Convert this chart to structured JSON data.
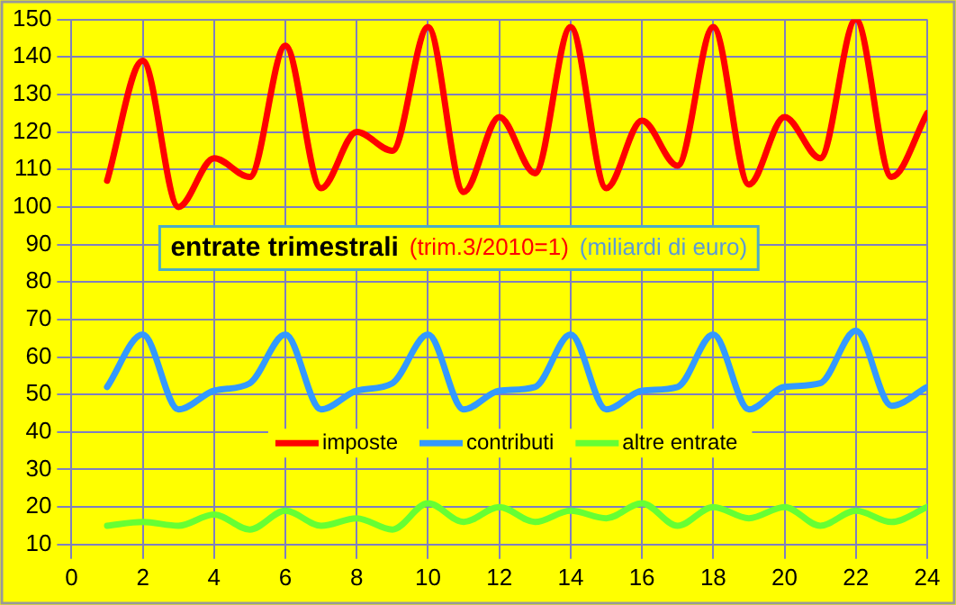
{
  "chart_data": {
    "type": "line",
    "title": "entrate trimestrali",
    "annotations": [
      "(trim.3/2010=1)",
      "(miliardi di euro)"
    ],
    "x": [
      1,
      2,
      3,
      4,
      5,
      6,
      7,
      8,
      9,
      10,
      11,
      12,
      13,
      14,
      15,
      16,
      17,
      18,
      19,
      20,
      21,
      22,
      23,
      24
    ],
    "series": [
      {
        "name": "imposte",
        "color": "#ff0000",
        "values": [
          107,
          139,
          100,
          113,
          108,
          143,
          105,
          120,
          115,
          148,
          104,
          124,
          109,
          148,
          105,
          123,
          111,
          148,
          106,
          124,
          113,
          150,
          108,
          125
        ]
      },
      {
        "name": "contributi",
        "color": "#3399ff",
        "values": [
          52,
          66,
          46,
          51,
          53,
          66,
          46,
          51,
          53,
          66,
          46,
          51,
          52,
          66,
          46,
          51,
          52,
          66,
          46,
          52,
          53,
          67,
          47,
          52
        ]
      },
      {
        "name": "altre entrate",
        "color": "#66ff33",
        "values": [
          15,
          16,
          15,
          18,
          14,
          19,
          15,
          17,
          14,
          21,
          16,
          20,
          16,
          19,
          17,
          21,
          15,
          20,
          17,
          20,
          15,
          19,
          16,
          20
        ]
      }
    ],
    "xlim": [
      0,
      24
    ],
    "xticks": [
      0,
      2,
      4,
      6,
      8,
      10,
      12,
      14,
      16,
      18,
      20,
      22,
      24
    ],
    "ylim": [
      10,
      150
    ],
    "yticks": [
      10,
      20,
      30,
      40,
      50,
      60,
      70,
      80,
      90,
      100,
      110,
      120,
      130,
      140,
      150
    ],
    "grid": true,
    "legend": "center",
    "marker": "none",
    "line_style": "solid"
  }
}
